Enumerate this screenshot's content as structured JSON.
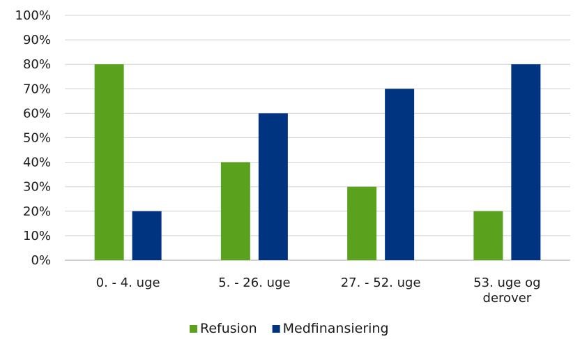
{
  "chart_data": {
    "type": "bar",
    "categories": [
      [
        "0. - 4. uge"
      ],
      [
        "5. - 26. uge"
      ],
      [
        "27. - 52. uge"
      ],
      [
        "53. uge og",
        "derover"
      ]
    ],
    "series": [
      {
        "name": "Refusion",
        "color": "#5aa21e",
        "values": [
          80,
          40,
          30,
          20
        ]
      },
      {
        "name": "Medfinansiering",
        "color": "#003380",
        "values": [
          20,
          60,
          70,
          80
        ]
      }
    ],
    "ylim": [
      0,
      100
    ],
    "yticks": [
      "0%",
      "10%",
      "20%",
      "30%",
      "40%",
      "50%",
      "60%",
      "70%",
      "80%",
      "90%",
      "100%"
    ],
    "grid": true,
    "legend": "bottom"
  }
}
